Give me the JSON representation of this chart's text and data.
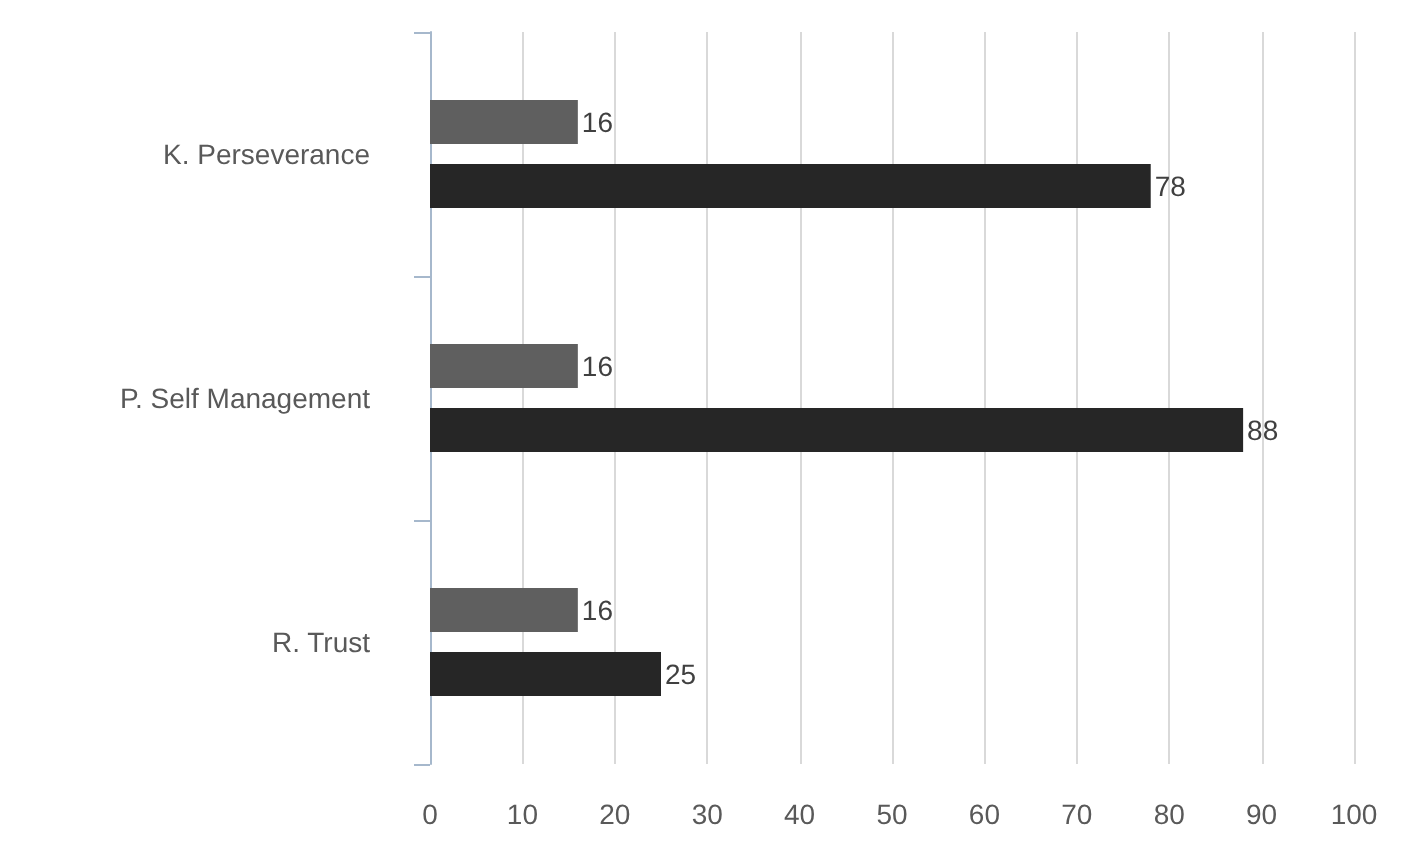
{
  "chart_data": {
    "type": "bar",
    "orientation": "horizontal",
    "categories": [
      "K. Perseverance",
      "P. Self Management",
      "R. Trust"
    ],
    "series": [
      {
        "color": "#5f5f5f",
        "values": [
          16,
          16,
          16
        ]
      },
      {
        "color": "#262626",
        "values": [
          78,
          88,
          25
        ]
      }
    ],
    "xlim": [
      0,
      100
    ],
    "xticks": [
      0,
      10,
      20,
      30,
      40,
      50,
      60,
      70,
      80,
      90,
      100
    ],
    "grid": "x",
    "data_labels": true
  }
}
